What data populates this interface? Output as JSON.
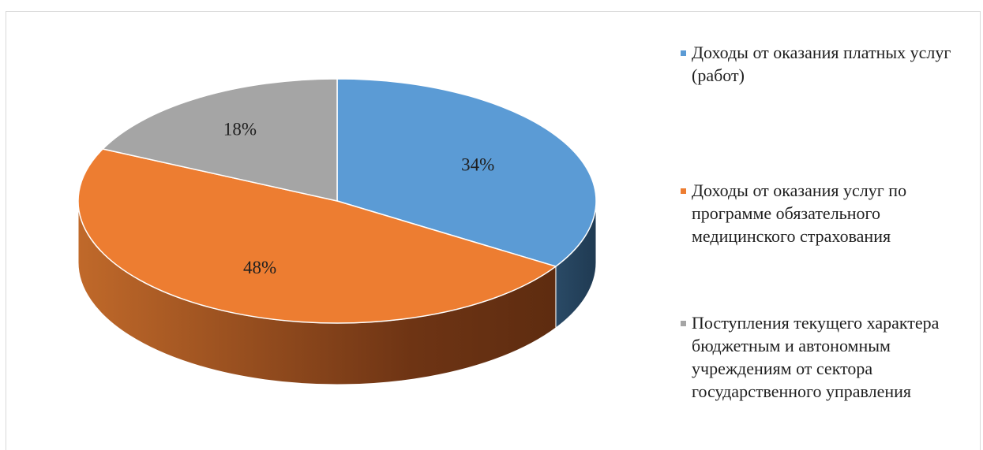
{
  "chart_data": {
    "type": "pie",
    "style": "3d",
    "title": "",
    "slices": [
      {
        "label": "Доходы от оказания платных услуг (работ)",
        "value": 34,
        "display": "34%",
        "color": "#5b9bd5"
      },
      {
        "label": "Доходы от оказания услуг по программе обязательного медицинского страхования",
        "value": 48,
        "display": "48%",
        "color": "#ed7d31"
      },
      {
        "label": "Поступления текущего характера бюджетным и автономным учреждениям от сектора государственного управления",
        "value": 18,
        "display": "18%",
        "color": "#a5a5a5"
      }
    ],
    "legend_position": "right"
  }
}
